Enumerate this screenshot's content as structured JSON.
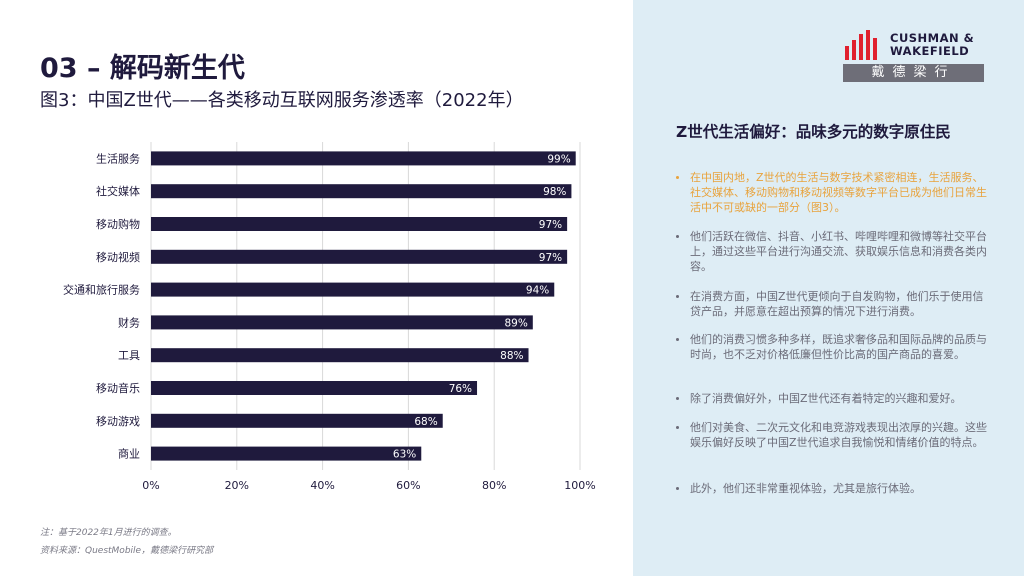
{
  "header": {
    "title": "03 – 解码新生代",
    "subtitle": "图3：中国Z世代——各类移动互联网服务渗透率（2022年）"
  },
  "brand": {
    "name_line1": "CUSHMAN &",
    "name_line2": "WAKEFIELD",
    "name_cn": "戴德梁行"
  },
  "chart_data": {
    "type": "hbar",
    "categories": [
      "生活服务",
      "社交媒体",
      "移动购物",
      "移动视频",
      "交通和旅行服务",
      "财务",
      "工具",
      "移动音乐",
      "移动游戏",
      "商业"
    ],
    "values": [
      99,
      98,
      97,
      97,
      94,
      89,
      88,
      76,
      68,
      63
    ],
    "value_labels": [
      "99%",
      "98%",
      "97%",
      "97%",
      "94%",
      "89%",
      "88%",
      "76%",
      "68%",
      "63%"
    ],
    "color": "#1f1a3d",
    "xlim": [
      0,
      100
    ],
    "xticks": [
      {
        "value": 0,
        "label": "0%"
      },
      {
        "value": 20,
        "label": "20%"
      },
      {
        "value": 40,
        "label": "40%"
      },
      {
        "value": 60,
        "label": "60%"
      },
      {
        "value": 80,
        "label": "80%"
      },
      {
        "value": 100,
        "label": "100%"
      }
    ],
    "grid": true
  },
  "notes": [
    "注：基于2022年1月进行的调查。",
    "资料来源：QuestMobile，戴德梁行研究部"
  ],
  "panel": {
    "title": "Z世代生活偏好：品味多元的数字原住民",
    "bullets": [
      "在中国内地，Z世代的生活与数字技术紧密相连，生活服务、社交媒体、移动购物和移动视频等数字平台已成为他们日常生活中不可或缺的一部分（图3）。",
      "他们活跃在微信、抖音、小红书、哔哩哔哩和微博等社交平台上，通过这些平台进行沟通交流、获取娱乐信息和消费各类内容。",
      "在消费方面，中国Z世代更倾向于自发购物，他们乐于使用信贷产品，并愿意在超出预算的情况下进行消费。",
      "他们的消费习惯多种多样，既追求奢侈品和国际品牌的品质与时尚，也不乏对价格低廉但性价比高的国产商品的喜爱。",
      "除了消费偏好外，中国Z世代还有着特定的兴趣和爱好。",
      "他们对美食、二次元文化和电竞游戏表现出浓厚的兴趣。这些娱乐偏好反映了中国Z世代追求自我愉悦和情绪价值的特点。",
      "此外，他们还非常重视体验，尤其是旅行体验。"
    ]
  }
}
